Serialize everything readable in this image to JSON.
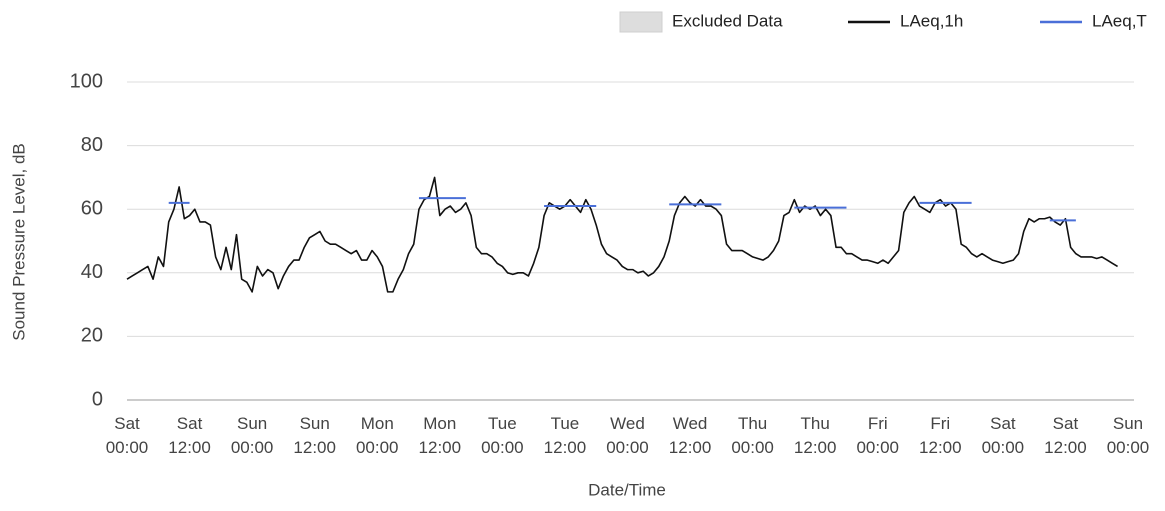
{
  "chart_data": {
    "type": "line",
    "xlabel": "Date/Time",
    "ylabel": "Sound Pressure Level, dB",
    "xlim": [
      0,
      192
    ],
    "ylim": [
      0,
      100
    ],
    "yticks": [
      0,
      20,
      40,
      60,
      80,
      100
    ],
    "xticks": [
      {
        "value": 0,
        "label": "Sat 00:00"
      },
      {
        "value": 12,
        "label": "Sat 12:00"
      },
      {
        "value": 24,
        "label": "Sun 00:00"
      },
      {
        "value": 36,
        "label": "Sun 12:00"
      },
      {
        "value": 48,
        "label": "Mon 00:00"
      },
      {
        "value": 60,
        "label": "Mon 12:00"
      },
      {
        "value": 72,
        "label": "Tue 00:00"
      },
      {
        "value": 84,
        "label": "Tue 12:00"
      },
      {
        "value": 96,
        "label": "Wed 00:00"
      },
      {
        "value": 108,
        "label": "Wed 12:00"
      },
      {
        "value": 120,
        "label": "Thu 00:00"
      },
      {
        "value": 132,
        "label": "Thu 12:00"
      },
      {
        "value": 144,
        "label": "Fri 00:00"
      },
      {
        "value": 156,
        "label": "Fri 12:00"
      },
      {
        "value": 168,
        "label": "Sat 00:00"
      },
      {
        "value": 180,
        "label": "Sat 12:00"
      },
      {
        "value": 192,
        "label": "Sun 00:00"
      }
    ],
    "grid": true,
    "legend": "top-right",
    "series": [
      {
        "name": "Excluded Data",
        "color": "#dddddd",
        "x": [],
        "values": []
      },
      {
        "name": "LAeq,1h",
        "color": "#111111",
        "x": [
          0,
          1,
          2,
          3,
          4,
          5,
          6,
          7,
          8,
          9,
          10,
          11,
          12,
          13,
          14,
          15,
          16,
          17,
          18,
          19,
          20,
          21,
          22,
          23,
          24,
          25,
          26,
          27,
          28,
          29,
          30,
          31,
          32,
          33,
          34,
          35,
          36,
          37,
          38,
          39,
          40,
          41,
          42,
          43,
          44,
          45,
          46,
          47,
          48,
          49,
          50,
          51,
          52,
          53,
          54,
          55,
          56,
          57,
          58,
          59,
          60,
          61,
          62,
          63,
          64,
          65,
          66,
          67,
          68,
          69,
          70,
          71,
          72,
          73,
          74,
          75,
          76,
          77,
          78,
          79,
          80,
          81,
          82,
          83,
          84,
          85,
          86,
          87,
          88,
          89,
          90,
          91,
          92,
          93,
          94,
          95,
          96,
          97,
          98,
          99,
          100,
          101,
          102,
          103,
          104,
          105,
          106,
          107,
          108,
          109,
          110,
          111,
          112,
          113,
          114,
          115,
          116,
          117,
          118,
          119,
          120,
          121,
          122,
          123,
          124,
          125,
          126,
          127,
          128,
          129,
          130,
          131,
          132,
          133,
          134,
          135,
          136,
          137,
          138,
          139,
          140,
          141,
          142,
          143,
          144,
          145,
          146,
          147,
          148,
          149,
          150,
          151,
          152,
          153,
          154,
          155,
          156,
          157,
          158,
          159,
          160,
          161,
          162,
          163,
          164,
          165,
          166,
          167,
          168,
          169,
          170,
          171,
          172,
          173,
          174,
          175,
          176,
          177,
          178,
          179,
          180,
          181,
          182,
          183,
          184,
          185,
          186,
          187,
          188,
          189,
          190
        ],
        "values": [
          38,
          39,
          40,
          41,
          42,
          38,
          45,
          42,
          56,
          60,
          67,
          57,
          58,
          60,
          56,
          56,
          55,
          45,
          41,
          48,
          41,
          52,
          38,
          37,
          34,
          42,
          39,
          41,
          40,
          35,
          39,
          42,
          44,
          44,
          48,
          51,
          52,
          53,
          50,
          49,
          49,
          48,
          47,
          46,
          47,
          44,
          44,
          47,
          45,
          42,
          34,
          34,
          38,
          41,
          46,
          49,
          60,
          63,
          64,
          70,
          58,
          60,
          61,
          59,
          60,
          62,
          58,
          48,
          46,
          46,
          45,
          43,
          42,
          40,
          39.5,
          40,
          40,
          39,
          43,
          48,
          58,
          62,
          61,
          60,
          61,
          63,
          61,
          59,
          63,
          60,
          55,
          49,
          46,
          45,
          44,
          42,
          41,
          41,
          40,
          40.5,
          39,
          40,
          42,
          45,
          50,
          58,
          62,
          64,
          62,
          61,
          63,
          61,
          61,
          60,
          58,
          49,
          47,
          47,
          47,
          46,
          45,
          44.5,
          44,
          45,
          47,
          50,
          58,
          59,
          63,
          59,
          61,
          60,
          61,
          58,
          60,
          58,
          48,
          48,
          46,
          46,
          45,
          44,
          44,
          43.5,
          43,
          44,
          43,
          45,
          47,
          59,
          62,
          64,
          61,
          60,
          59,
          62,
          63,
          61,
          62,
          60,
          49,
          48,
          46,
          45,
          46,
          45,
          44,
          43.5,
          43,
          43.5,
          44,
          46,
          53,
          57,
          56,
          57,
          57,
          57.5,
          56,
          55,
          57,
          48,
          46,
          45,
          45,
          45,
          44.5,
          45,
          44,
          43,
          42
        ]
      },
      {
        "name": "LAeq,T",
        "color": "#4a6fd8",
        "x": [
          8,
          12,
          null,
          56,
          65,
          null,
          80,
          90,
          null,
          104,
          114,
          null,
          128,
          138,
          null,
          152,
          162,
          null,
          177,
          182
        ],
        "values": [
          62,
          62,
          null,
          63.5,
          63.5,
          null,
          61,
          61,
          null,
          61.5,
          61.5,
          null,
          60.5,
          60.5,
          null,
          62,
          62,
          null,
          56.5,
          56.5
        ]
      }
    ]
  }
}
